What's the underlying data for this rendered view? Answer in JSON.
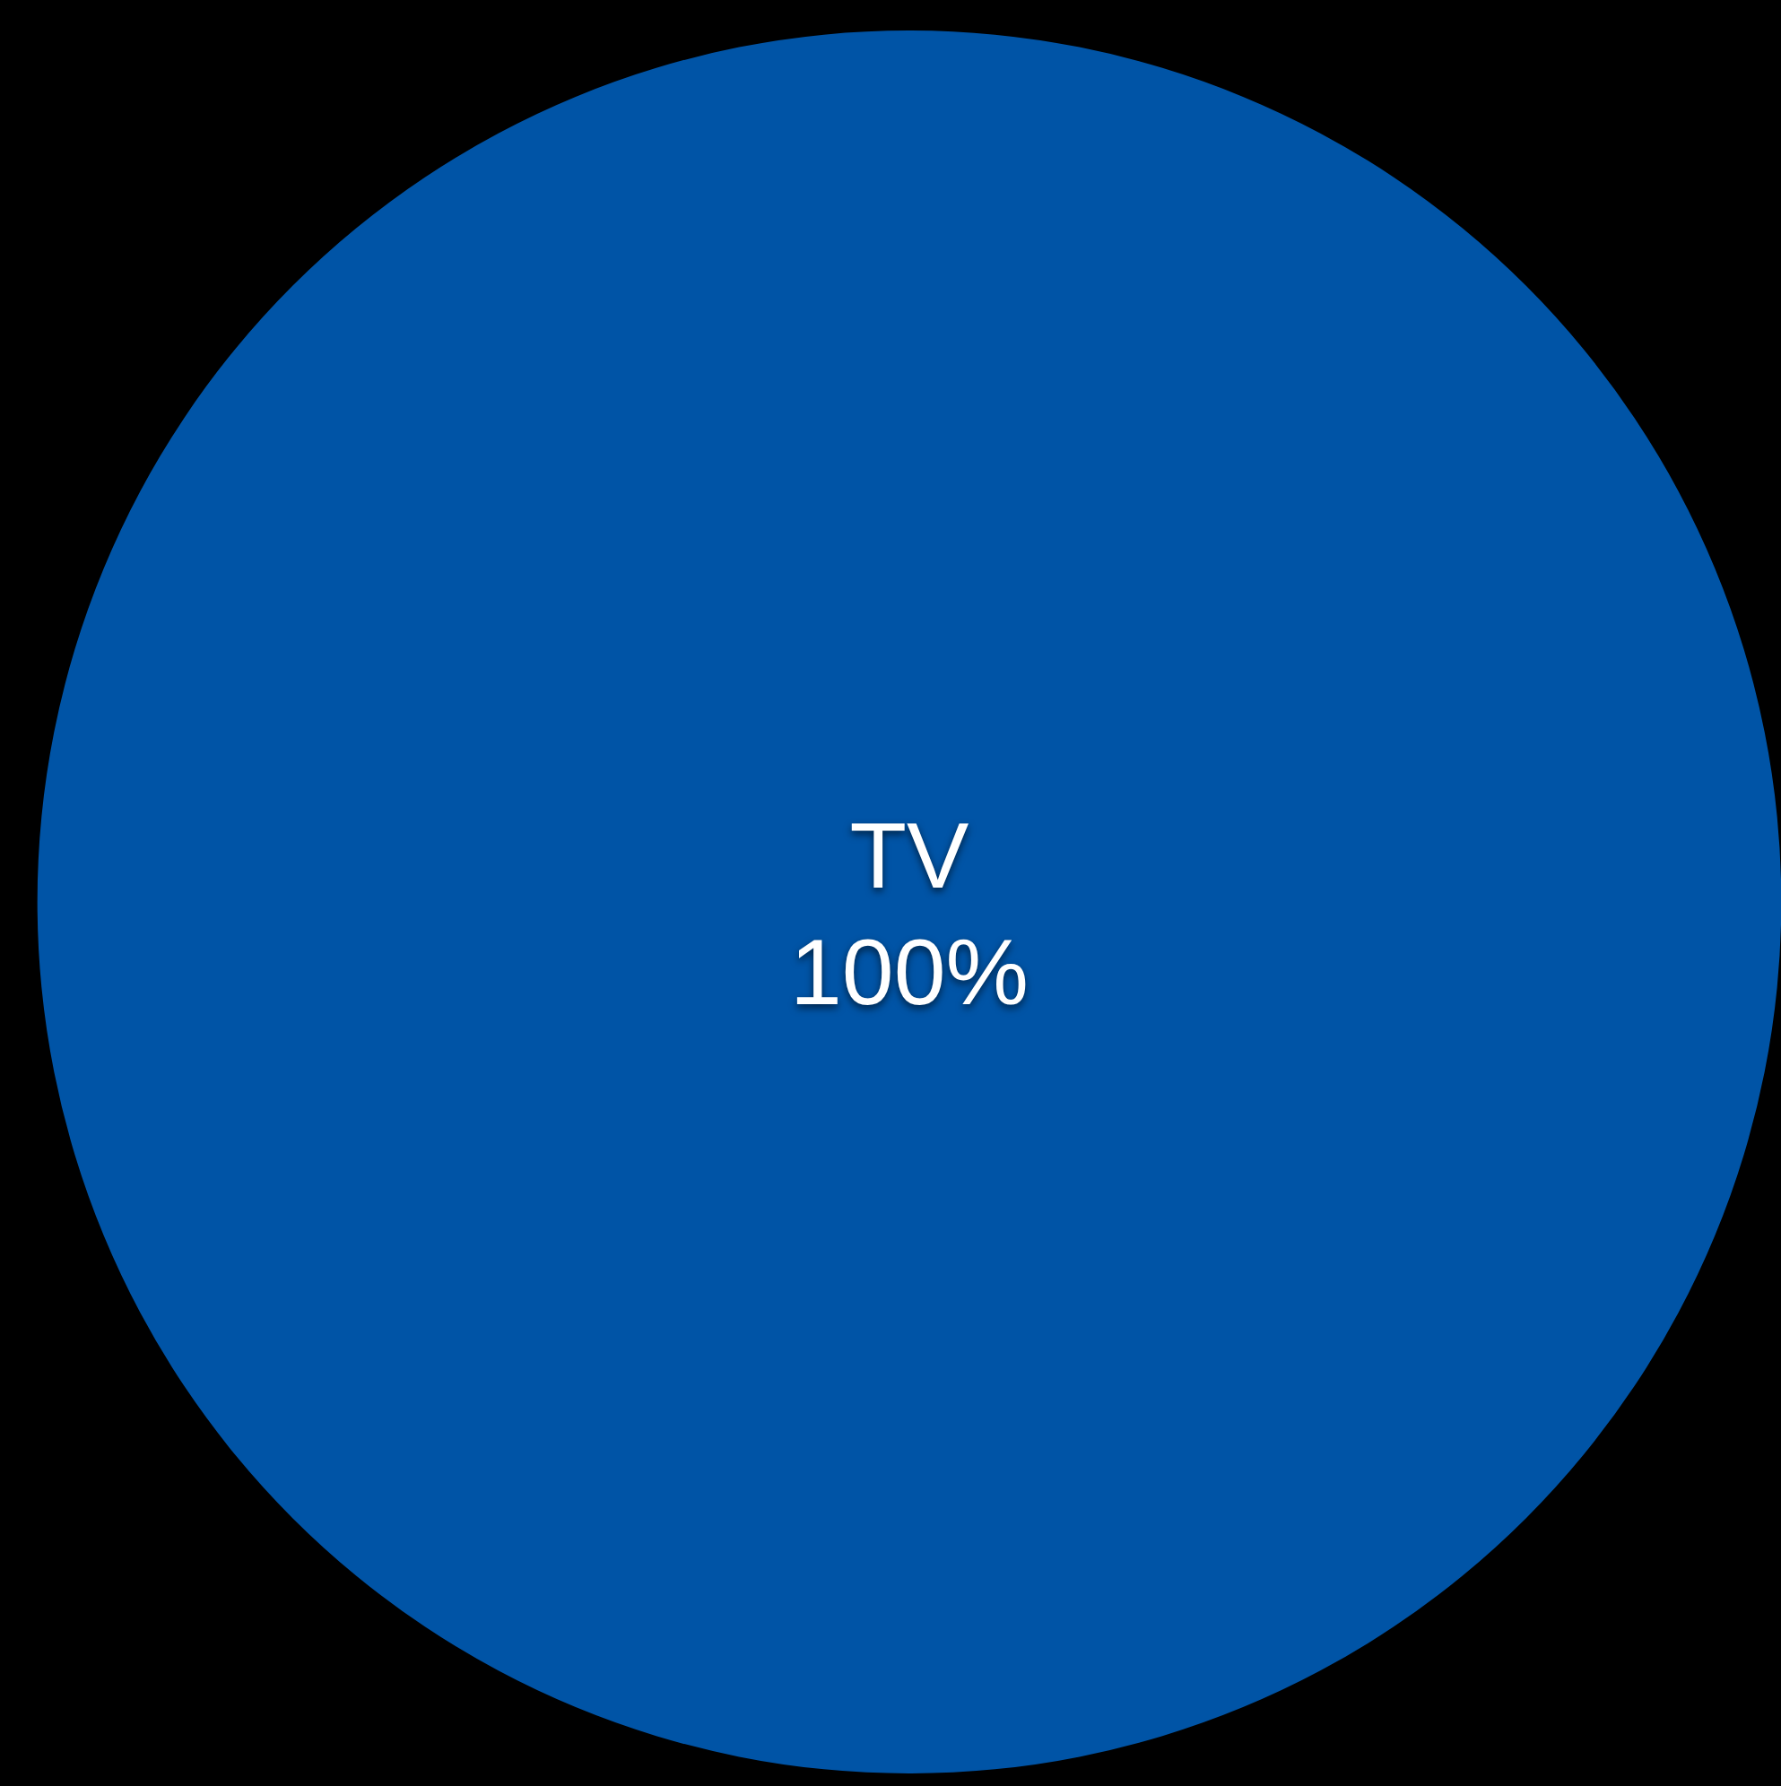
{
  "chart_data": {
    "type": "pie",
    "categories": [
      "TV"
    ],
    "values": [
      100
    ],
    "colors": [
      "#0054a6"
    ],
    "value_labels": [
      "100%"
    ]
  }
}
